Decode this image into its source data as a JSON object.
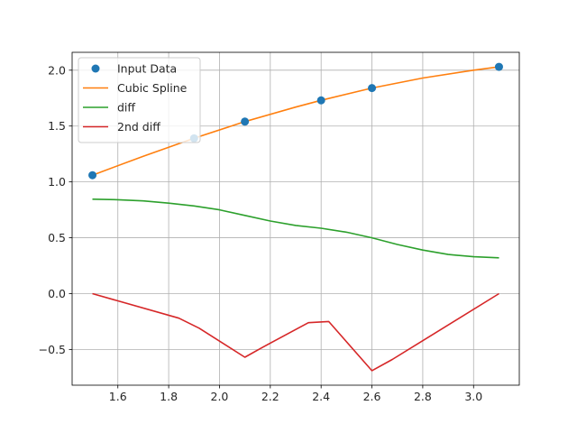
{
  "chart_data": {
    "type": "line",
    "title": "",
    "xlabel": "",
    "ylabel": "",
    "xlim": [
      1.42,
      3.18
    ],
    "ylim": [
      -0.82,
      2.16
    ],
    "xticks": [
      1.6,
      1.8,
      2.0,
      2.2,
      2.4,
      2.6,
      2.8,
      3.0
    ],
    "xtick_labels": [
      "1.6",
      "1.8",
      "2.0",
      "2.2",
      "2.4",
      "2.6",
      "2.8",
      "3.0"
    ],
    "yticks": [
      -0.5,
      0.0,
      0.5,
      1.0,
      1.5,
      2.0
    ],
    "ytick_labels": [
      "−0.5",
      "0.0",
      "0.5",
      "1.0",
      "1.5",
      "2.0"
    ],
    "grid": true,
    "legend_position": "top-left",
    "series": [
      {
        "name": "Input Data",
        "kind": "scatter",
        "color": "#1f77b4",
        "x": [
          1.5,
          1.9,
          2.1,
          2.4,
          2.6,
          3.1
        ],
        "y": [
          1.06,
          1.39,
          1.54,
          1.73,
          1.84,
          2.03
        ]
      },
      {
        "name": "Cubic Spline",
        "kind": "line",
        "color": "#ff7f0e",
        "x": [
          1.5,
          1.7,
          1.9,
          2.1,
          2.3,
          2.4,
          2.6,
          2.8,
          3.0,
          3.1
        ],
        "y": [
          1.06,
          1.23,
          1.39,
          1.54,
          1.67,
          1.73,
          1.84,
          1.93,
          2.0,
          2.03
        ]
      },
      {
        "name": "diff",
        "kind": "line",
        "color": "#2ca02c",
        "x": [
          1.5,
          1.6,
          1.7,
          1.8,
          1.9,
          2.0,
          2.1,
          2.2,
          2.3,
          2.4,
          2.5,
          2.6,
          2.7,
          2.8,
          2.9,
          3.0,
          3.1
        ],
        "y": [
          0.845,
          0.84,
          0.83,
          0.81,
          0.785,
          0.75,
          0.7,
          0.65,
          0.61,
          0.585,
          0.55,
          0.5,
          0.44,
          0.39,
          0.35,
          0.33,
          0.32
        ]
      },
      {
        "name": "2nd diff",
        "kind": "line",
        "color": "#d62728",
        "x": [
          1.5,
          1.84,
          1.92,
          2.1,
          2.17,
          2.35,
          2.43,
          2.6,
          2.68,
          3.1
        ],
        "y": [
          0.0,
          -0.22,
          -0.31,
          -0.57,
          -0.48,
          -0.26,
          -0.25,
          -0.69,
          -0.59,
          0.0
        ]
      }
    ]
  }
}
